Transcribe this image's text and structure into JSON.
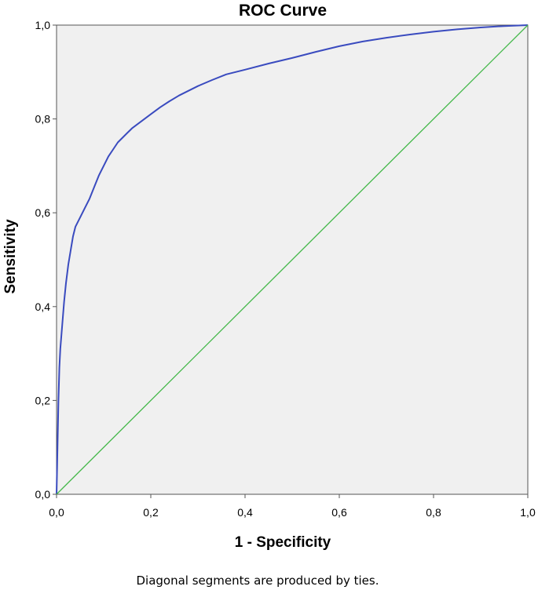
{
  "chart_data": {
    "type": "line",
    "title": "ROC Curve",
    "xlabel": "1 - Specificity",
    "ylabel": "Sensitivity",
    "xlim": [
      0,
      1
    ],
    "ylim": [
      0,
      1
    ],
    "x_ticks": [
      "0,0",
      "0,2",
      "0,4",
      "0,6",
      "0,8",
      "1,0"
    ],
    "y_ticks": [
      "0,0",
      "0,2",
      "0,4",
      "0,6",
      "0,8",
      "1,0"
    ],
    "grid": false,
    "footnote": "Diagonal segments are produced by ties.",
    "series": [
      {
        "color": "#3a4bbf",
        "points": [
          [
            0.0,
            0.0
          ],
          [
            0.002,
            0.1
          ],
          [
            0.004,
            0.2
          ],
          [
            0.006,
            0.27
          ],
          [
            0.008,
            0.31
          ],
          [
            0.012,
            0.36
          ],
          [
            0.016,
            0.41
          ],
          [
            0.02,
            0.45
          ],
          [
            0.025,
            0.49
          ],
          [
            0.03,
            0.52
          ],
          [
            0.035,
            0.55
          ],
          [
            0.04,
            0.57
          ],
          [
            0.05,
            0.59
          ],
          [
            0.06,
            0.61
          ],
          [
            0.07,
            0.63
          ],
          [
            0.08,
            0.655
          ],
          [
            0.09,
            0.68
          ],
          [
            0.1,
            0.7
          ],
          [
            0.11,
            0.72
          ],
          [
            0.12,
            0.735
          ],
          [
            0.13,
            0.75
          ],
          [
            0.14,
            0.76
          ],
          [
            0.15,
            0.77
          ],
          [
            0.16,
            0.78
          ],
          [
            0.18,
            0.795
          ],
          [
            0.2,
            0.81
          ],
          [
            0.22,
            0.825
          ],
          [
            0.24,
            0.838
          ],
          [
            0.26,
            0.85
          ],
          [
            0.28,
            0.86
          ],
          [
            0.3,
            0.87
          ],
          [
            0.33,
            0.883
          ],
          [
            0.36,
            0.895
          ],
          [
            0.4,
            0.905
          ],
          [
            0.45,
            0.918
          ],
          [
            0.5,
            0.93
          ],
          [
            0.55,
            0.943
          ],
          [
            0.6,
            0.955
          ],
          [
            0.65,
            0.965
          ],
          [
            0.7,
            0.973
          ],
          [
            0.75,
            0.98
          ],
          [
            0.8,
            0.986
          ],
          [
            0.85,
            0.991
          ],
          [
            0.9,
            0.995
          ],
          [
            0.95,
            0.998
          ],
          [
            1.0,
            1.0
          ]
        ]
      },
      {
        "color": "#44b84a",
        "points": [
          [
            0.0,
            0.0
          ],
          [
            1.0,
            1.0
          ]
        ]
      }
    ]
  }
}
